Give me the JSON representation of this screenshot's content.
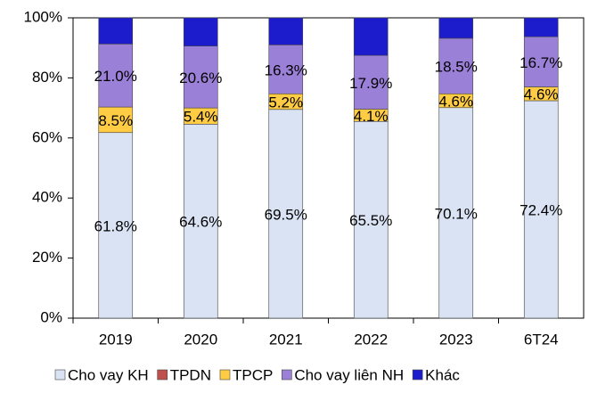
{
  "chart_data": {
    "type": "stacked_bar",
    "categories": [
      "2019",
      "2020",
      "2021",
      "2022",
      "2023",
      "6T24"
    ],
    "series": [
      {
        "name": "Cho vay KH",
        "color": "#dae3f3",
        "values": [
          61.8,
          64.6,
          69.5,
          65.5,
          70.1,
          72.4
        ],
        "value_labels": [
          "61.8%",
          "64.6%",
          "69.5%",
          "65.5%",
          "70.1%",
          "72.4%"
        ]
      },
      {
        "name": "TPDN",
        "color": "#c0504d",
        "values": [
          0,
          0,
          0,
          0,
          0,
          0
        ]
      },
      {
        "name": "TPCP",
        "color": "#ffcc44",
        "values": [
          8.5,
          5.4,
          5.2,
          4.1,
          4.6,
          4.6
        ],
        "value_labels": [
          "8.5%",
          "5.4%",
          "5.2%",
          "4.1%",
          "4.6%",
          "4.6%"
        ]
      },
      {
        "name": "Cho vay liên NH",
        "color": "#9b80d8",
        "values": [
          21.0,
          20.6,
          16.3,
          17.9,
          18.5,
          16.7
        ],
        "value_labels": [
          "21.0%",
          "20.6%",
          "16.3%",
          "17.9%",
          "18.5%",
          "16.7%"
        ]
      },
      {
        "name": "Khác",
        "color": "#1c1ccc",
        "values": [
          8.7,
          9.4,
          9.0,
          12.5,
          6.8,
          6.3
        ]
      }
    ],
    "ylim": [
      0,
      100
    ],
    "yticks": [
      {
        "value": 0,
        "label": "0%"
      },
      {
        "value": 20,
        "label": "20%"
      },
      {
        "value": 40,
        "label": "40%"
      },
      {
        "value": 60,
        "label": "60%"
      },
      {
        "value": 80,
        "label": "80%"
      },
      {
        "value": 100,
        "label": "100%"
      }
    ],
    "legend": "bottom"
  }
}
